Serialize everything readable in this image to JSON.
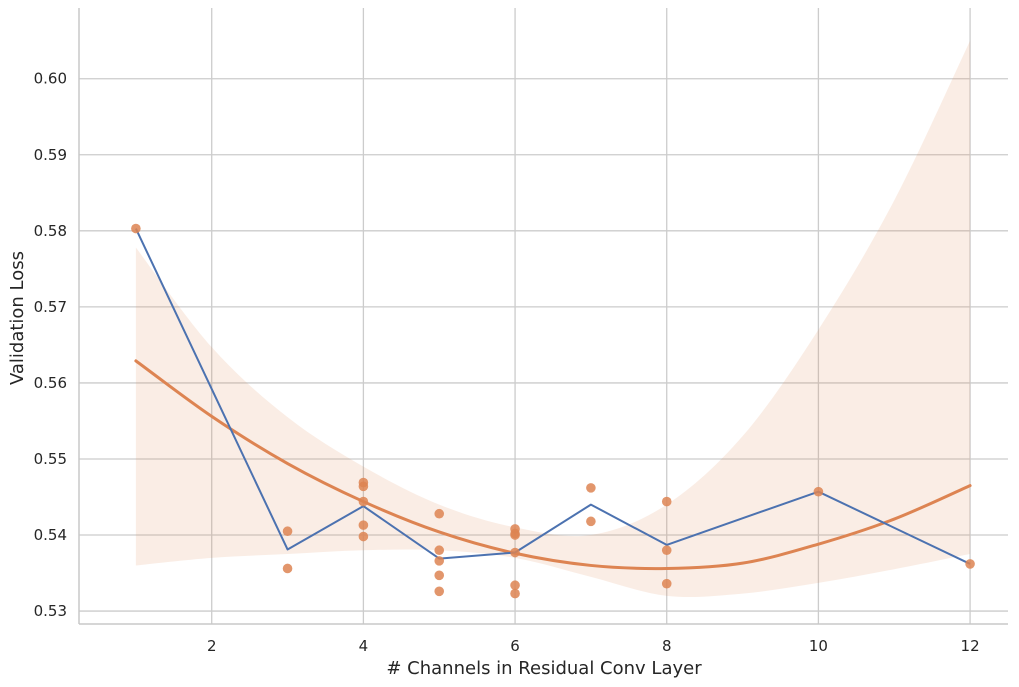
{
  "chart_data": {
    "type": "scatter",
    "title": "",
    "xlabel": "# Channels in Residual Conv Layer",
    "ylabel": "Validation Loss",
    "xlim": [
      0.25,
      12.5
    ],
    "ylim": [
      0.5283,
      0.6093
    ],
    "x_ticks": [
      2,
      4,
      6,
      8,
      10,
      12
    ],
    "x_tick_labels": [
      "2",
      "4",
      "6",
      "8",
      "10",
      "12"
    ],
    "y_ticks": [
      0.53,
      0.54,
      0.55,
      0.56,
      0.57,
      0.58,
      0.59,
      0.6
    ],
    "y_tick_labels": [
      "0.53",
      "0.54",
      "0.55",
      "0.56",
      "0.57",
      "0.58",
      "0.59",
      "0.60"
    ],
    "grid": true,
    "colors": {
      "points": "#dd8452",
      "fit_line": "#dd8452",
      "confidence_band": "#dd8452",
      "mean_line": "#4c72b0"
    },
    "series": [
      {
        "kind": "scatter",
        "x": [
          1,
          3,
          3,
          4,
          4,
          4,
          4,
          4,
          5,
          5,
          5,
          5,
          5,
          6,
          6,
          6,
          6,
          6,
          6,
          7,
          7,
          8,
          8,
          8,
          10,
          12
        ],
        "y": [
          0.5803,
          0.5405,
          0.5356,
          0.5469,
          0.5464,
          0.5444,
          0.5413,
          0.5398,
          0.5428,
          0.538,
          0.5366,
          0.5347,
          0.5326,
          0.5408,
          0.5402,
          0.54,
          0.5377,
          0.5334,
          0.5323,
          0.5462,
          0.5418,
          0.5444,
          0.538,
          0.5336,
          0.5457,
          0.5362
        ]
      },
      {
        "kind": "line",
        "x": [
          1,
          3,
          4,
          5,
          6,
          7,
          8,
          10,
          12
        ],
        "y": [
          0.5803,
          0.5381,
          0.5438,
          0.5369,
          0.5377,
          0.544,
          0.5387,
          0.5457,
          0.5362
        ]
      },
      {
        "kind": "regression",
        "order": 2,
        "x": [
          1,
          2,
          3,
          4,
          5,
          6,
          7,
          8,
          9,
          10,
          11,
          12
        ],
        "y": [
          0.5629,
          0.5556,
          0.5494,
          0.5444,
          0.5404,
          0.5376,
          0.536,
          0.5356,
          0.5363,
          0.5388,
          0.5421,
          0.5465
        ],
        "ci_lower": [
          0.536,
          0.537,
          0.5375,
          0.538,
          0.538,
          0.537,
          0.5345,
          0.532,
          0.5323,
          0.5337,
          0.5355,
          0.5375
        ],
        "ci_upper": [
          0.5778,
          0.5647,
          0.5555,
          0.549,
          0.544,
          0.541,
          0.54,
          0.544,
          0.553,
          0.567,
          0.584,
          0.605
        ]
      }
    ]
  }
}
